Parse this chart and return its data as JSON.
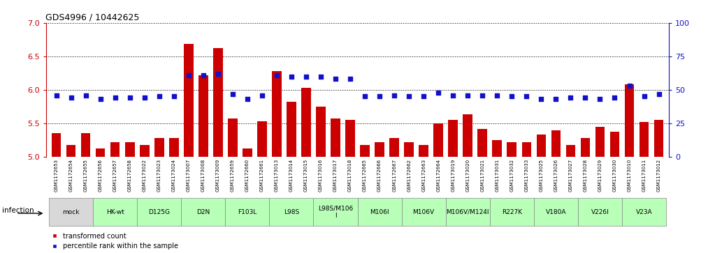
{
  "title": "GDS4996 / 10442625",
  "samples": [
    "GSM1172653",
    "GSM1172654",
    "GSM1172655",
    "GSM1172656",
    "GSM1172657",
    "GSM1172658",
    "GSM1173022",
    "GSM1173023",
    "GSM1173024",
    "GSM1173007",
    "GSM1173008",
    "GSM1173009",
    "GSM1172659",
    "GSM1172660",
    "GSM1172661",
    "GSM1173013",
    "GSM1173014",
    "GSM1173015",
    "GSM1173016",
    "GSM1173017",
    "GSM1173018",
    "GSM1172665",
    "GSM1172666",
    "GSM1172667",
    "GSM1172662",
    "GSM1172663",
    "GSM1172664",
    "GSM1173019",
    "GSM1173020",
    "GSM1173021",
    "GSM1173031",
    "GSM1173032",
    "GSM1173033",
    "GSM1173025",
    "GSM1173026",
    "GSM1173027",
    "GSM1173028",
    "GSM1173029",
    "GSM1173030",
    "GSM1173010",
    "GSM1173011",
    "GSM1173012"
  ],
  "bar_values": [
    5.35,
    5.18,
    5.35,
    5.13,
    5.22,
    5.22,
    5.18,
    5.28,
    5.28,
    6.68,
    6.22,
    6.62,
    5.57,
    5.13,
    5.53,
    6.28,
    5.82,
    6.03,
    5.75,
    5.57,
    5.55,
    5.18,
    5.22,
    5.28,
    5.22,
    5.18,
    5.5,
    5.55,
    5.63,
    5.42,
    5.25,
    5.22,
    5.22,
    5.33,
    5.4,
    5.18,
    5.28,
    5.45,
    5.38,
    6.08,
    5.52,
    5.55
  ],
  "percentile_values": [
    46,
    44,
    46,
    43,
    44,
    44,
    44,
    45,
    45,
    61,
    61,
    62,
    47,
    43,
    46,
    61,
    60,
    60,
    60,
    58,
    58,
    45,
    45,
    46,
    45,
    45,
    48,
    46,
    46,
    46,
    46,
    45,
    45,
    43,
    43,
    44,
    44,
    43,
    44,
    53,
    45,
    47
  ],
  "groups": [
    {
      "label": "mock",
      "start": 0,
      "end": 2,
      "color": "#d8d8d8"
    },
    {
      "label": "HK-wt",
      "start": 3,
      "end": 5,
      "color": "#b8ffb8"
    },
    {
      "label": "D125G",
      "start": 6,
      "end": 8,
      "color": "#b8ffb8"
    },
    {
      "label": "D2N",
      "start": 9,
      "end": 11,
      "color": "#b8ffb8"
    },
    {
      "label": "F103L",
      "start": 12,
      "end": 14,
      "color": "#b8ffb8"
    },
    {
      "label": "L98S",
      "start": 15,
      "end": 17,
      "color": "#b8ffb8"
    },
    {
      "label": "L98S/M106\nI",
      "start": 18,
      "end": 20,
      "color": "#b8ffb8"
    },
    {
      "label": "M106I",
      "start": 21,
      "end": 23,
      "color": "#b8ffb8"
    },
    {
      "label": "M106V",
      "start": 24,
      "end": 26,
      "color": "#b8ffb8"
    },
    {
      "label": "M106V/M124I",
      "start": 27,
      "end": 29,
      "color": "#b8ffb8"
    },
    {
      "label": "R227K",
      "start": 30,
      "end": 32,
      "color": "#b8ffb8"
    },
    {
      "label": "V180A",
      "start": 33,
      "end": 35,
      "color": "#b8ffb8"
    },
    {
      "label": "V226I",
      "start": 36,
      "end": 38,
      "color": "#b8ffb8"
    },
    {
      "label": "V23A",
      "start": 39,
      "end": 41,
      "color": "#b8ffb8"
    }
  ],
  "ylim_left": [
    5.0,
    7.0
  ],
  "ylim_right": [
    0,
    100
  ],
  "yticks_left": [
    5.0,
    5.5,
    6.0,
    6.5,
    7.0
  ],
  "yticks_right": [
    0,
    25,
    50,
    75,
    100
  ],
  "bar_color": "#cc0000",
  "dot_color": "#1111cc",
  "bar_width": 0.65,
  "xtick_bg": "#cccccc",
  "legend_items": [
    {
      "label": "transformed count",
      "color": "#cc0000"
    },
    {
      "label": "percentile rank within the sample",
      "color": "#1111cc"
    }
  ]
}
